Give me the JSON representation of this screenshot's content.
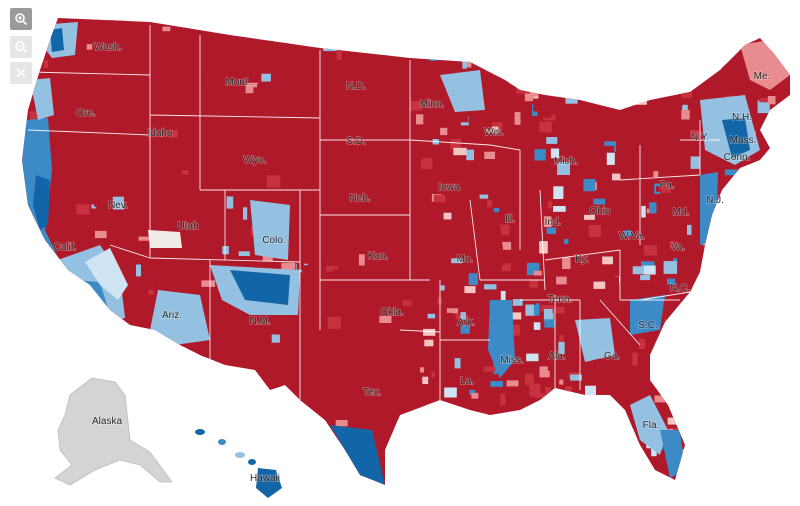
{
  "map": {
    "type": "choropleth",
    "region": "United States by county",
    "colors": {
      "dark_red": "#b0192a",
      "red": "#c8313f",
      "light_red": "#e98c8f",
      "pale_red": "#f5c7c4",
      "neutral": "#f2ece9",
      "pale_blue": "#cfe4f3",
      "light_blue": "#94c1e2",
      "blue": "#3c8ac6",
      "dark_blue": "#1266a8",
      "noncontiguous_gray": "#d4d4d4"
    },
    "labels": [
      {
        "id": "wash",
        "text": "Wash."
      },
      {
        "id": "ore",
        "text": "Ore."
      },
      {
        "id": "calif",
        "text": "Calif."
      },
      {
        "id": "nev",
        "text": "Nev."
      },
      {
        "id": "idaho",
        "text": "Idaho"
      },
      {
        "id": "mont",
        "text": "Mont."
      },
      {
        "id": "wyo",
        "text": "Wyo."
      },
      {
        "id": "utah",
        "text": "Utah"
      },
      {
        "id": "colo",
        "text": "Colo."
      },
      {
        "id": "ariz",
        "text": "Ariz."
      },
      {
        "id": "nm",
        "text": "N.M."
      },
      {
        "id": "nd",
        "text": "N.D."
      },
      {
        "id": "sd",
        "text": "S.D."
      },
      {
        "id": "neb",
        "text": "Neb."
      },
      {
        "id": "kan",
        "text": "Kan."
      },
      {
        "id": "okla",
        "text": "Okla."
      },
      {
        "id": "tex",
        "text": "Tex."
      },
      {
        "id": "minn",
        "text": "Minn."
      },
      {
        "id": "iowa",
        "text": "Iowa"
      },
      {
        "id": "mo",
        "text": "Mo."
      },
      {
        "id": "ark",
        "text": "Ark."
      },
      {
        "id": "la",
        "text": "La."
      },
      {
        "id": "wis",
        "text": "Wis."
      },
      {
        "id": "ill",
        "text": "Ill."
      },
      {
        "id": "mich",
        "text": "Mich."
      },
      {
        "id": "ind",
        "text": "Ind."
      },
      {
        "id": "ohio",
        "text": "Ohio"
      },
      {
        "id": "ky",
        "text": "Ky."
      },
      {
        "id": "tenn",
        "text": "Tenn."
      },
      {
        "id": "miss",
        "text": "Miss."
      },
      {
        "id": "ala",
        "text": "Ala."
      },
      {
        "id": "ga",
        "text": "Ga."
      },
      {
        "id": "fla",
        "text": "Fla."
      },
      {
        "id": "sc",
        "text": "S.C."
      },
      {
        "id": "nc",
        "text": "N.C."
      },
      {
        "id": "va",
        "text": "Va."
      },
      {
        "id": "wva",
        "text": "W.Va."
      },
      {
        "id": "pa",
        "text": "Pa."
      },
      {
        "id": "ny",
        "text": "N.Y."
      },
      {
        "id": "nj",
        "text": "N.J."
      },
      {
        "id": "md",
        "text": "Md."
      },
      {
        "id": "conn",
        "text": "Conn."
      },
      {
        "id": "mass",
        "text": "Mass."
      },
      {
        "id": "nh",
        "text": "N.H."
      },
      {
        "id": "me",
        "text": "Me."
      },
      {
        "id": "alaska",
        "text": "Alaska"
      },
      {
        "id": "hawaii",
        "text": "Hawaii"
      }
    ]
  },
  "controls": {
    "zoom_in_icon": "zoom-in-magnifier-icon",
    "zoom_out_icon": "zoom-out-magnifier-icon",
    "reset_icon": "close-x-icon"
  }
}
